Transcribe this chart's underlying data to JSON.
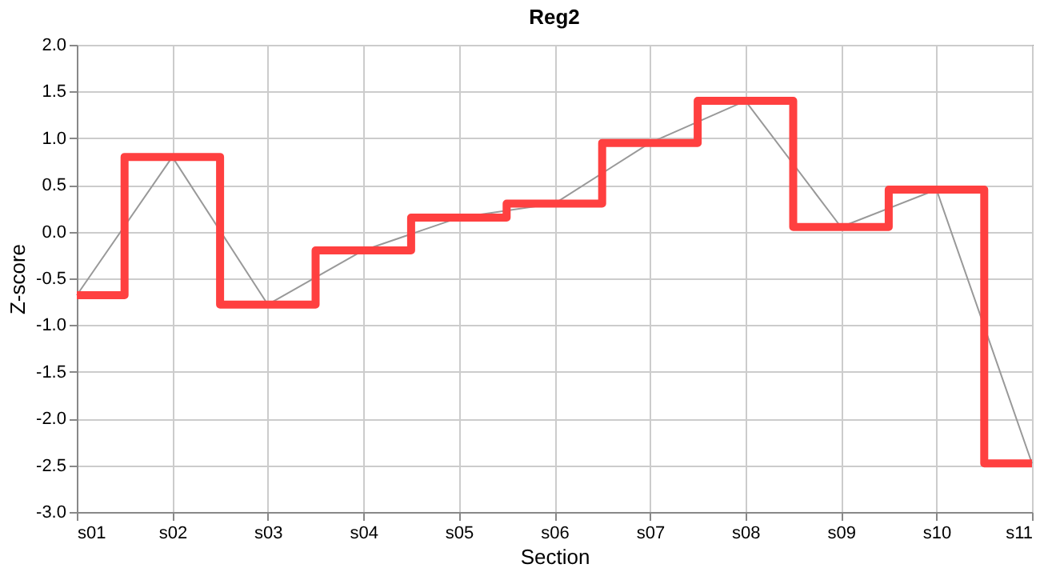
{
  "chart_data": {
    "type": "line",
    "title": "Reg2",
    "xlabel": "Section",
    "ylabel": "Z-score",
    "categories": [
      "s01",
      "s02",
      "s03",
      "s04",
      "s05",
      "s06",
      "s07",
      "s08",
      "s09",
      "s10",
      "s11"
    ],
    "series": [
      {
        "color": "#999999",
        "values": [
          -0.68,
          0.8,
          -0.78,
          -0.2,
          0.15,
          0.3,
          0.95,
          1.4,
          0.05,
          0.45,
          -2.48
        ]
      },
      {
        "type": "step",
        "color": "#ff4040",
        "values": [
          -0.68,
          0.8,
          -0.78,
          -0.2,
          0.15,
          0.3,
          0.95,
          1.4,
          0.05,
          0.45,
          -2.48
        ]
      }
    ],
    "ylim": [
      -3,
      2
    ],
    "yticks": [
      {
        "value": -3,
        "label": "-3.0"
      },
      -2.5,
      {
        "value": -2,
        "label": "-2.0"
      },
      -1.5,
      {
        "value": -1,
        "label": "-1.0"
      },
      -0.5,
      {
        "value": 0,
        "label": "0.0"
      },
      0.5,
      {
        "value": 1,
        "label": "1.0"
      },
      1.5,
      {
        "value": 2,
        "label": "2.0"
      }
    ],
    "grid": true,
    "marker": "none",
    "line_style": "solid"
  }
}
